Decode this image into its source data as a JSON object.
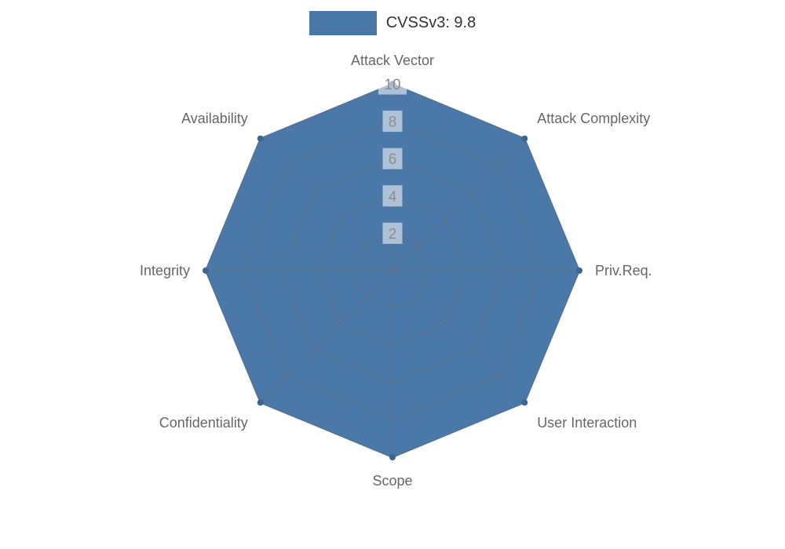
{
  "chart_data": {
    "type": "radar",
    "title": "",
    "legend": {
      "label": "CVSSv3: 9.8",
      "position": "top-center"
    },
    "axes": [
      "Attack Vector",
      "Attack Complexity",
      "Priv.Req.",
      "User Interaction",
      "Scope",
      "Confidentiality",
      "Integrity",
      "Availability"
    ],
    "series": [
      {
        "name": "CVSSv3: 9.8",
        "values": [
          10,
          10,
          10,
          10,
          10,
          10,
          10,
          10
        ]
      }
    ],
    "ticks": [
      "2",
      "4",
      "6",
      "8",
      "10"
    ],
    "tick_values": [
      2,
      4,
      6,
      8,
      10
    ],
    "rmax": 10,
    "grid": "on",
    "colors": {
      "fill": "#4a78a8",
      "vertex": "#3d6591",
      "grid_line": "#6e6e6e",
      "tick_text": "#8c8c8c",
      "tick_box": "#ffffff",
      "axis_text": "#666666",
      "legend_text": "#333333"
    }
  }
}
